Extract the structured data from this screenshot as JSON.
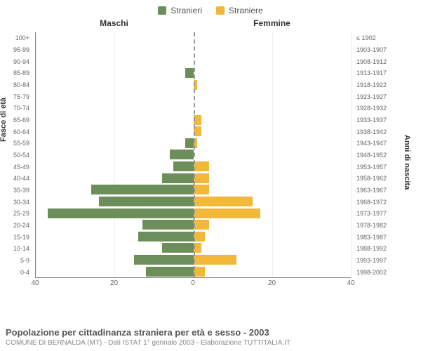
{
  "legend": {
    "male_label": "Stranieri",
    "female_label": "Straniere",
    "male_color": "#6b8e5a",
    "female_color": "#f2b83a"
  },
  "section_titles": {
    "left": "Maschi",
    "right": "Femmine"
  },
  "axis_titles": {
    "left": "Fasce di età",
    "right": "Anni di nascita"
  },
  "chart": {
    "type": "population-pyramid",
    "background_color": "#ffffff",
    "grid_color": "#eeeeee",
    "axis_color": "#888888",
    "center_line_color": "#999999",
    "x_max": 40,
    "x_ticks": [
      40,
      20,
      0,
      20,
      40
    ],
    "label_fontsize": 9,
    "tick_fontsize": 10
  },
  "rows": [
    {
      "age": "0-4",
      "birth": "1998-2002",
      "m": 12,
      "f": 3
    },
    {
      "age": "5-9",
      "birth": "1993-1997",
      "m": 15,
      "f": 11
    },
    {
      "age": "10-14",
      "birth": "1988-1992",
      "m": 8,
      "f": 2
    },
    {
      "age": "15-19",
      "birth": "1983-1987",
      "m": 14,
      "f": 3
    },
    {
      "age": "20-24",
      "birth": "1978-1982",
      "m": 13,
      "f": 4
    },
    {
      "age": "25-29",
      "birth": "1973-1977",
      "m": 37,
      "f": 17
    },
    {
      "age": "30-34",
      "birth": "1968-1972",
      "m": 24,
      "f": 15
    },
    {
      "age": "35-39",
      "birth": "1963-1967",
      "m": 26,
      "f": 4
    },
    {
      "age": "40-44",
      "birth": "1958-1962",
      "m": 8,
      "f": 4
    },
    {
      "age": "45-49",
      "birth": "1953-1957",
      "m": 5,
      "f": 4
    },
    {
      "age": "50-54",
      "birth": "1948-1952",
      "m": 6,
      "f": 0
    },
    {
      "age": "55-59",
      "birth": "1943-1947",
      "m": 2,
      "f": 1
    },
    {
      "age": "60-64",
      "birth": "1938-1942",
      "m": 0,
      "f": 2
    },
    {
      "age": "65-69",
      "birth": "1933-1937",
      "m": 0,
      "f": 2
    },
    {
      "age": "70-74",
      "birth": "1928-1932",
      "m": 0,
      "f": 0
    },
    {
      "age": "75-79",
      "birth": "1923-1927",
      "m": 0,
      "f": 0
    },
    {
      "age": "80-84",
      "birth": "1918-1922",
      "m": 0,
      "f": 1
    },
    {
      "age": "85-89",
      "birth": "1913-1917",
      "m": 2,
      "f": 0
    },
    {
      "age": "90-94",
      "birth": "1908-1912",
      "m": 0,
      "f": 0
    },
    {
      "age": "95-99",
      "birth": "1903-1907",
      "m": 0,
      "f": 0
    },
    {
      "age": "100+",
      "birth": "≤ 1902",
      "m": 0,
      "f": 0
    }
  ],
  "footer": {
    "title": "Popolazione per cittadinanza straniera per età e sesso - 2003",
    "subtitle": "COMUNE DI BERNALDA (MT) - Dati ISTAT 1° gennaio 2003 - Elaborazione TUTTITALIA.IT"
  }
}
